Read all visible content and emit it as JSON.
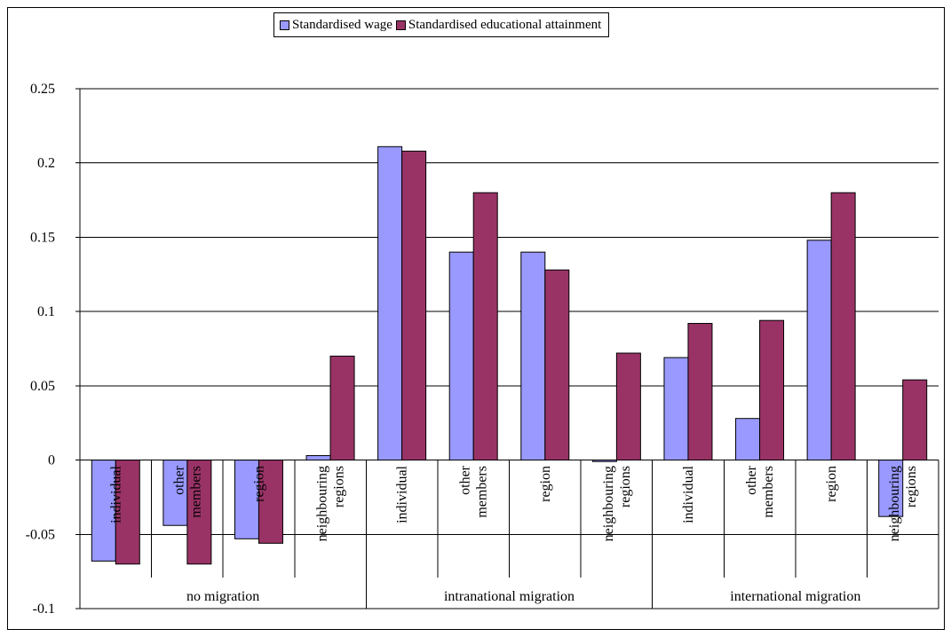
{
  "chart_data": {
    "type": "bar",
    "title": "",
    "xlabel": "",
    "ylabel": "",
    "ylim": [
      -0.1,
      0.25
    ],
    "yticks": [
      0.25,
      0.2,
      0.15,
      0.1,
      0.05,
      0,
      -0.05,
      -0.1
    ],
    "ytick_labels": [
      "0.25",
      "0.2",
      "0.15",
      "0.1",
      "0.05",
      "0",
      "-0.05",
      "-0.1"
    ],
    "grid": true,
    "legend_position": "top-center",
    "groups": [
      {
        "label": "no migration",
        "categories": [
          [
            "individual"
          ],
          [
            "other",
            "members"
          ],
          [
            "region"
          ],
          [
            "neighbouring",
            "regions"
          ]
        ]
      },
      {
        "label": "intranational migration",
        "categories": [
          [
            "individual"
          ],
          [
            "other",
            "members"
          ],
          [
            "region"
          ],
          [
            "neighbouring",
            "regions"
          ]
        ]
      },
      {
        "label": "international migration",
        "categories": [
          [
            "individual"
          ],
          [
            "other",
            "members"
          ],
          [
            "region"
          ],
          [
            "neighbouring",
            "regions"
          ]
        ]
      }
    ],
    "series": [
      {
        "name": "Standardised wage",
        "color": "#9999ff",
        "values": [
          -0.068,
          -0.044,
          -0.053,
          0.003,
          0.211,
          0.14,
          0.14,
          -0.001,
          0.069,
          0.028,
          0.148,
          -0.038
        ]
      },
      {
        "name": "Standardised educational attainment",
        "color": "#993366",
        "values": [
          -0.07,
          -0.07,
          -0.056,
          0.07,
          0.208,
          0.18,
          0.128,
          0.072,
          0.092,
          0.094,
          0.18,
          0.054
        ]
      }
    ]
  }
}
